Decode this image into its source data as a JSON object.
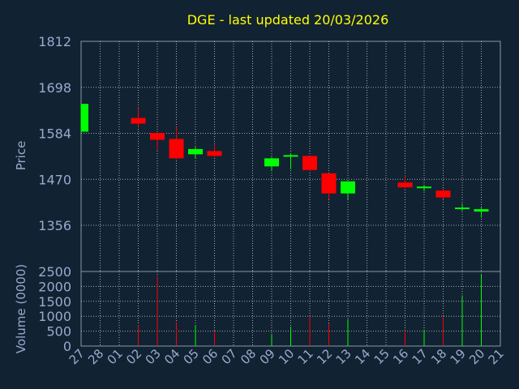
{
  "chart_data": {
    "type": "candlestick",
    "title": "DGE - last updated 20/03/2026",
    "xlabel": "Day",
    "ylabel_price": "Price",
    "ylabel_volume": "Volume (0000)",
    "x_ticks": [
      "27",
      "28",
      "01",
      "02",
      "03",
      "04",
      "05",
      "06",
      "07",
      "08",
      "09",
      "10",
      "11",
      "12",
      "13",
      "14",
      "15",
      "16",
      "17",
      "18",
      "19",
      "20",
      "21"
    ],
    "price_ylim": [
      1356,
      1812
    ],
    "price_ticks": [
      "1812",
      "1698",
      "1584",
      "1470",
      "1356"
    ],
    "volume_ylim": [
      0,
      2500
    ],
    "volume_ticks": [
      "2500",
      "2000",
      "1500",
      "1000",
      "500",
      "0"
    ],
    "colors": {
      "up": "#00ff00",
      "down": "#ff0000",
      "title": "#ffff00",
      "axis_text": "#99aacc",
      "grid": "#cccccc",
      "background": "#112233"
    },
    "grid": true,
    "candles": [
      {
        "day": "27",
        "open": 1588,
        "high": 1657,
        "low": 1588,
        "close": 1657,
        "volume": 0
      },
      {
        "day": "02",
        "open": 1622,
        "high": 1648,
        "low": 1600,
        "close": 1608,
        "volume": 700
      },
      {
        "day": "03",
        "open": 1585,
        "high": 1585,
        "low": 1542,
        "close": 1568,
        "volume": 2350
      },
      {
        "day": "04",
        "open": 1570,
        "high": 1600,
        "low": 1520,
        "close": 1522,
        "volume": 800
      },
      {
        "day": "05",
        "open": 1532,
        "high": 1550,
        "low": 1522,
        "close": 1545,
        "volume": 700
      },
      {
        "day": "06",
        "open": 1540,
        "high": 1555,
        "low": 1525,
        "close": 1528,
        "volume": 500
      },
      {
        "day": "09",
        "open": 1502,
        "high": 1525,
        "low": 1490,
        "close": 1522,
        "volume": 400
      },
      {
        "day": "10",
        "open": 1528,
        "high": 1535,
        "low": 1495,
        "close": 1530,
        "volume": 650
      },
      {
        "day": "11",
        "open": 1528,
        "high": 1528,
        "low": 1490,
        "close": 1493,
        "volume": 1000
      },
      {
        "day": "12",
        "open": 1485,
        "high": 1485,
        "low": 1420,
        "close": 1435,
        "volume": 750
      },
      {
        "day": "13",
        "open": 1435,
        "high": 1465,
        "low": 1420,
        "close": 1465,
        "volume": 900
      },
      {
        "day": "16",
        "open": 1462,
        "high": 1480,
        "low": 1448,
        "close": 1450,
        "volume": 500
      },
      {
        "day": "17",
        "open": 1450,
        "high": 1456,
        "low": 1440,
        "close": 1452,
        "volume": 550
      },
      {
        "day": "18",
        "open": 1442,
        "high": 1448,
        "low": 1420,
        "close": 1425,
        "volume": 1000
      },
      {
        "day": "19",
        "open": 1398,
        "high": 1410,
        "low": 1392,
        "close": 1400,
        "volume": 1700
      },
      {
        "day": "20",
        "open": 1390,
        "high": 1400,
        "low": 1375,
        "close": 1396,
        "volume": 2400
      }
    ]
  }
}
